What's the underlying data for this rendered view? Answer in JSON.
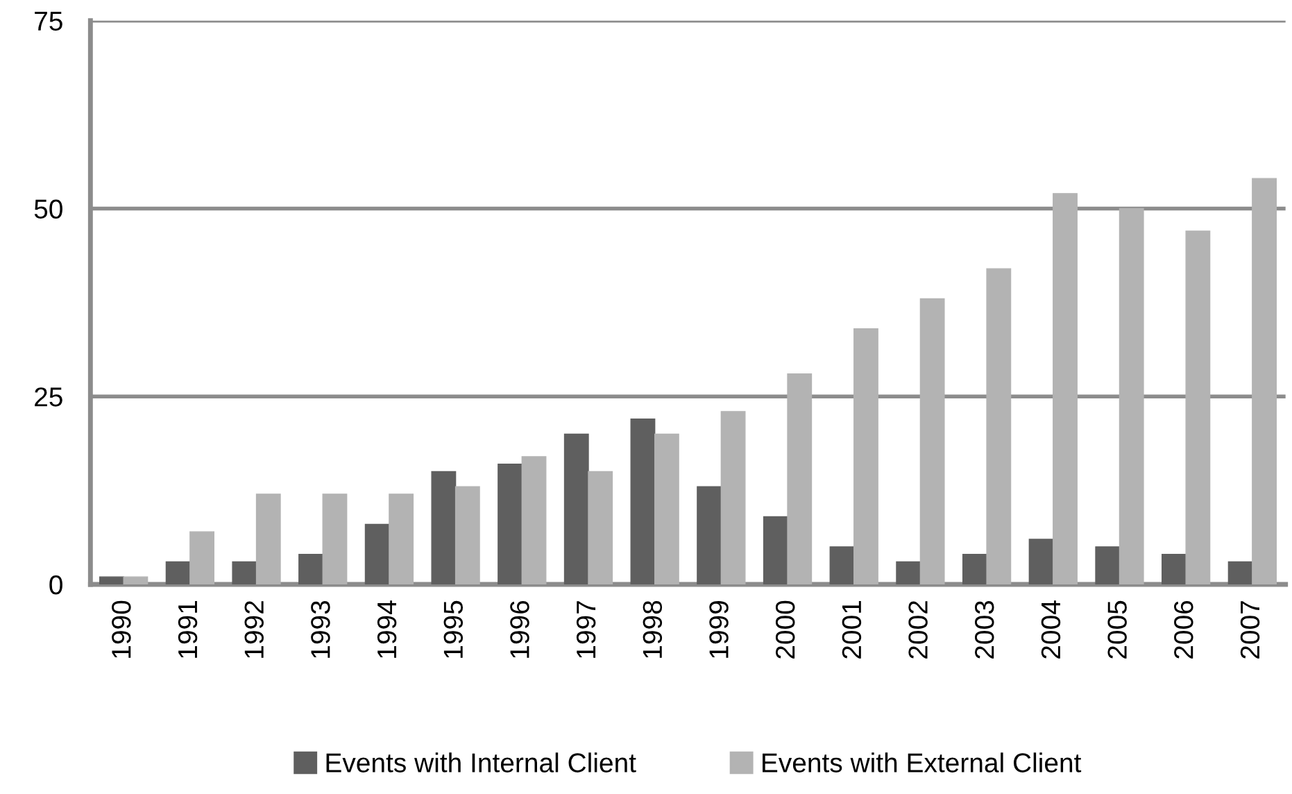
{
  "chart_data": {
    "type": "bar",
    "categories": [
      "1990",
      "1991",
      "1992",
      "1993",
      "1994",
      "1995",
      "1996",
      "1997",
      "1998",
      "1999",
      "2000",
      "2001",
      "2002",
      "2003",
      "2004",
      "2005",
      "2006",
      "2007"
    ],
    "series": [
      {
        "name": "Events with Internal Client",
        "color": "#5f5f5f",
        "values": [
          1,
          3,
          3,
          4,
          8,
          15,
          16,
          20,
          22,
          13,
          9,
          5,
          3,
          4,
          6,
          5,
          4,
          3
        ]
      },
      {
        "name": "Events with External Client",
        "color": "#b3b3b3",
        "values": [
          1,
          7,
          12,
          12,
          12,
          13,
          17,
          15,
          20,
          23,
          28,
          34,
          38,
          42,
          52,
          50,
          47,
          54
        ]
      }
    ],
    "ylim": [
      0,
      75
    ],
    "yticks": [
      0,
      25,
      50,
      75
    ],
    "grid": "y",
    "legend": "bottom"
  }
}
